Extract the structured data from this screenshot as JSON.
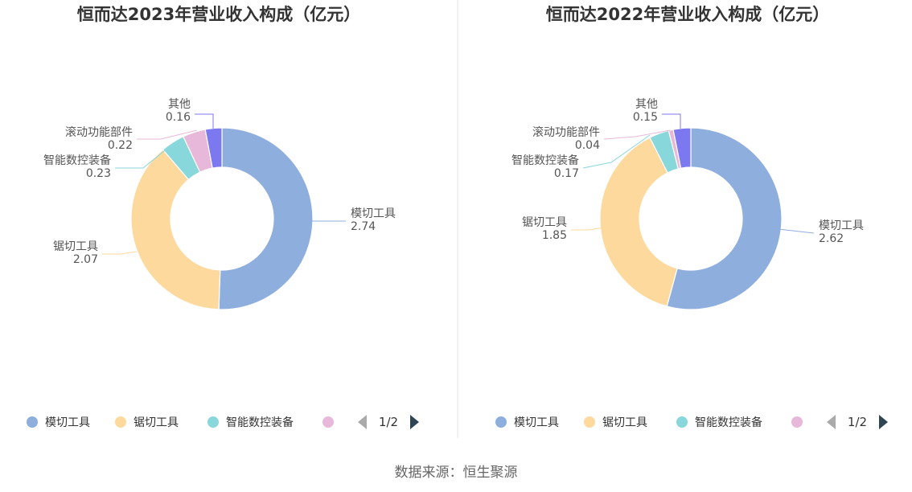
{
  "colors": {
    "模切工具": "#8eaedd",
    "锯切工具": "#fdd99d",
    "智能数控装备": "#88d7da",
    "滚动功能部件": "#e8b8da",
    "其他": "#7b78f0"
  },
  "legend": {
    "items": [
      "模切工具",
      "锯切工具",
      "智能数控装备",
      ""
    ],
    "page": "1/2"
  },
  "source": "数据来源：恒生聚源",
  "chart_data": [
    {
      "type": "pie",
      "title": "恒而达2023年营业收入构成（亿元）",
      "series": [
        {
          "name": "模切工具",
          "value": 2.74,
          "label": "2.74"
        },
        {
          "name": "锯切工具",
          "value": 2.07,
          "label": "2.07"
        },
        {
          "name": "智能数控装备",
          "value": 0.23,
          "label": "0.23"
        },
        {
          "name": "滚动功能部件",
          "value": 0.22,
          "label": "0.22"
        },
        {
          "name": "其他",
          "value": 0.16,
          "label": "0.16"
        }
      ]
    },
    {
      "type": "pie",
      "title": "恒而达2022年营业收入构成（亿元）",
      "series": [
        {
          "name": "模切工具",
          "value": 2.62,
          "label": "2.62"
        },
        {
          "name": "锯切工具",
          "value": 1.85,
          "label": "1.85"
        },
        {
          "name": "智能数控装备",
          "value": 0.17,
          "label": "0.17"
        },
        {
          "name": "滚动功能部件",
          "value": 0.04,
          "label": "0.04"
        },
        {
          "name": "其他",
          "value": 0.15,
          "label": "0.15"
        }
      ]
    }
  ]
}
